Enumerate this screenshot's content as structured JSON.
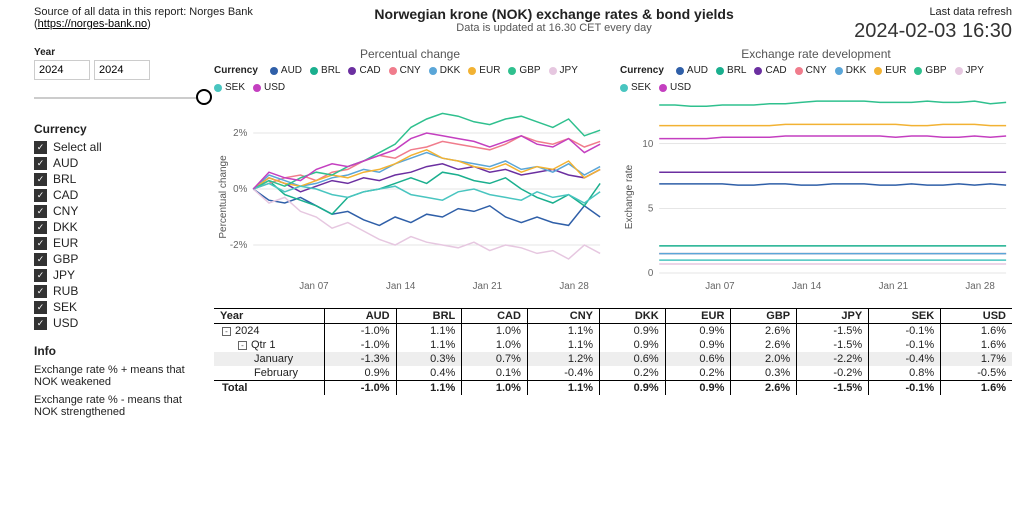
{
  "header": {
    "source_prefix": "Source of all data in this report: Norges Bank (",
    "source_link_text": "https://norges-bank.no",
    "source_suffix": ")",
    "title": "Norwegian krone (NOK) exchange rates & bond yields",
    "subtitle": "Data is updated at 16.30 CET every day",
    "refresh_label": "Last data refresh",
    "refresh_value": "2024-02-03 16:30"
  },
  "sidebar": {
    "year_label": "Year",
    "year_from": "2024",
    "year_to": "2024",
    "currency_header": "Currency",
    "select_all": "Select all",
    "currencies": [
      "AUD",
      "BRL",
      "CAD",
      "CNY",
      "DKK",
      "EUR",
      "GBP",
      "JPY",
      "RUB",
      "SEK",
      "USD"
    ],
    "info_header": "Info",
    "info_1": "Exchange rate % + means that NOK weakened",
    "info_2": "Exchange rate % - means that NOK strengthened"
  },
  "colors": {
    "AUD": "#2f5fa8",
    "BRL": "#1aaf8e",
    "CAD": "#6b2fa0",
    "CNY": "#f07c8c",
    "DKK": "#5aa6d8",
    "EUR": "#f2b233",
    "GBP": "#2fc08e",
    "JPY": "#e6c7e0",
    "SEK": "#49c5c0",
    "USD": "#c43fc0"
  },
  "chart1": {
    "title": "Percentual change",
    "legend_lead": "Currency",
    "y_label": "Percentual change",
    "y_ticks": [
      -2,
      0,
      2
    ],
    "ylim": [
      -3,
      3
    ],
    "x_ticks": [
      "Jan 07",
      "Jan 14",
      "Jan 21",
      "Jan 28"
    ],
    "series": {
      "AUD": [
        0,
        -0.4,
        -0.5,
        -0.3,
        -0.6,
        -0.9,
        -0.8,
        -1.1,
        -1.3,
        -1.0,
        -1.2,
        -0.9,
        -1.0,
        -0.7,
        -0.8,
        -0.6,
        -1.0,
        -1.2,
        -1.0,
        -1.2,
        -1.3,
        -0.6,
        -1.0
      ],
      "BRL": [
        0,
        0.3,
        -0.2,
        -0.4,
        -0.6,
        -0.9,
        -0.3,
        -0.1,
        0.0,
        0.2,
        0.4,
        0.2,
        0.6,
        0.5,
        0.3,
        0.2,
        0.4,
        0.0,
        -0.3,
        -0.5,
        -0.2,
        -0.6,
        0.2
      ],
      "CAD": [
        0,
        0.4,
        0.2,
        -0.1,
        0.1,
        0.3,
        0.2,
        0.4,
        0.3,
        0.5,
        0.6,
        0.8,
        0.9,
        0.7,
        0.8,
        0.6,
        0.7,
        0.5,
        0.6,
        0.7,
        0.5,
        0.4,
        0.7
      ],
      "CNY": [
        0,
        0.2,
        0.4,
        0.5,
        0.3,
        0.6,
        0.7,
        1.0,
        1.2,
        1.1,
        1.4,
        1.5,
        1.7,
        1.6,
        1.5,
        1.4,
        1.6,
        1.9,
        1.7,
        1.6,
        1.8,
        1.5,
        1.7
      ],
      "DKK": [
        0,
        0.5,
        0.3,
        0.1,
        0.2,
        0.4,
        0.5,
        0.7,
        0.6,
        0.9,
        1.1,
        1.3,
        1.1,
        1.0,
        0.9,
        0.8,
        1.0,
        0.7,
        0.8,
        0.6,
        0.9,
        0.5,
        0.8
      ],
      "EUR": [
        0,
        0.4,
        0.2,
        0.1,
        0.3,
        0.5,
        0.4,
        0.6,
        0.7,
        0.9,
        1.2,
        1.4,
        1.1,
        1.0,
        0.8,
        0.7,
        0.9,
        0.6,
        0.8,
        0.7,
        1.0,
        0.4,
        0.7
      ],
      "GBP": [
        0,
        0.3,
        0.1,
        0.4,
        0.6,
        0.5,
        0.8,
        1.0,
        1.3,
        1.6,
        2.2,
        2.5,
        2.7,
        2.6,
        2.4,
        2.3,
        2.5,
        2.6,
        2.4,
        2.2,
        2.5,
        1.9,
        2.1
      ],
      "JPY": [
        0,
        -0.5,
        -0.3,
        -0.8,
        -1.0,
        -1.4,
        -1.2,
        -1.5,
        -1.8,
        -2.0,
        -1.7,
        -1.9,
        -2.0,
        -2.1,
        -1.9,
        -2.2,
        -2.0,
        -2.1,
        -2.3,
        -2.2,
        -2.5,
        -2.0,
        -2.3
      ],
      "SEK": [
        0,
        0.2,
        -0.1,
        0.1,
        0.0,
        -0.2,
        -0.3,
        -0.1,
        0.0,
        0.1,
        -0.2,
        -0.3,
        -0.4,
        -0.1,
        0.0,
        -0.2,
        -0.3,
        -0.4,
        -0.1,
        -0.3,
        -0.2,
        -0.5,
        -0.1
      ],
      "USD": [
        0,
        0.6,
        0.4,
        0.3,
        0.7,
        0.9,
        0.8,
        1.0,
        1.2,
        1.4,
        1.8,
        2.0,
        1.9,
        1.8,
        1.7,
        1.5,
        1.7,
        1.9,
        1.6,
        1.5,
        1.8,
        1.3,
        1.6
      ]
    }
  },
  "chart2": {
    "title": "Exchange rate development",
    "legend_lead": "Currency",
    "y_label": "Exchange rate",
    "y_ticks": [
      0,
      5,
      10
    ],
    "ylim": [
      0,
      13
    ],
    "x_ticks": [
      "Jan 07",
      "Jan 14",
      "Jan 21",
      "Jan 28"
    ],
    "series": {
      "AUD": [
        6.9,
        6.9,
        6.9,
        6.9,
        6.9,
        6.8,
        6.8,
        6.9,
        6.9,
        6.8,
        6.8,
        6.9,
        6.9,
        6.9,
        6.8,
        6.8,
        6.9,
        6.8,
        6.8,
        6.9,
        6.8,
        6.9,
        6.8
      ],
      "BRL": [
        2.1,
        2.1,
        2.1,
        2.1,
        2.1,
        2.1,
        2.1,
        2.1,
        2.1,
        2.1,
        2.1,
        2.1,
        2.1,
        2.1,
        2.1,
        2.1,
        2.1,
        2.1,
        2.1,
        2.1,
        2.1,
        2.1,
        2.1
      ],
      "CAD": [
        7.8,
        7.8,
        7.8,
        7.8,
        7.8,
        7.8,
        7.8,
        7.8,
        7.8,
        7.8,
        7.8,
        7.8,
        7.8,
        7.8,
        7.8,
        7.8,
        7.8,
        7.8,
        7.8,
        7.8,
        7.8,
        7.8,
        7.8
      ],
      "CNY": [
        1.5,
        1.5,
        1.5,
        1.5,
        1.5,
        1.5,
        1.5,
        1.5,
        1.5,
        1.5,
        1.5,
        1.5,
        1.5,
        1.5,
        1.5,
        1.5,
        1.5,
        1.5,
        1.5,
        1.5,
        1.5,
        1.5,
        1.5
      ],
      "DKK": [
        1.5,
        1.5,
        1.5,
        1.5,
        1.5,
        1.5,
        1.5,
        1.5,
        1.5,
        1.5,
        1.5,
        1.5,
        1.5,
        1.5,
        1.5,
        1.5,
        1.5,
        1.5,
        1.5,
        1.5,
        1.5,
        1.5,
        1.5
      ],
      "EUR": [
        11.4,
        11.4,
        11.4,
        11.4,
        11.4,
        11.4,
        11.4,
        11.4,
        11.5,
        11.5,
        11.5,
        11.5,
        11.5,
        11.5,
        11.5,
        11.5,
        11.4,
        11.4,
        11.5,
        11.5,
        11.5,
        11.4,
        11.4
      ],
      "GBP": [
        13.0,
        13.0,
        12.9,
        12.9,
        13.0,
        13.0,
        13.0,
        13.1,
        13.1,
        13.2,
        13.3,
        13.3,
        13.3,
        13.3,
        13.2,
        13.2,
        13.2,
        13.3,
        13.2,
        13.2,
        13.3,
        13.1,
        13.2
      ],
      "JPY": [
        0.7,
        0.7,
        0.7,
        0.7,
        0.7,
        0.7,
        0.7,
        0.7,
        0.7,
        0.7,
        0.7,
        0.7,
        0.7,
        0.7,
        0.7,
        0.7,
        0.7,
        0.7,
        0.7,
        0.7,
        0.7,
        0.7,
        0.7
      ],
      "SEK": [
        1.0,
        1.0,
        1.0,
        1.0,
        1.0,
        1.0,
        1.0,
        1.0,
        1.0,
        1.0,
        1.0,
        1.0,
        1.0,
        1.0,
        1.0,
        1.0,
        1.0,
        1.0,
        1.0,
        1.0,
        1.0,
        1.0,
        1.0
      ],
      "USD": [
        10.4,
        10.4,
        10.4,
        10.4,
        10.5,
        10.5,
        10.5,
        10.5,
        10.6,
        10.6,
        10.6,
        10.6,
        10.6,
        10.6,
        10.6,
        10.5,
        10.6,
        10.6,
        10.5,
        10.5,
        10.6,
        10.5,
        10.6
      ]
    }
  },
  "table": {
    "row_header": "Year",
    "columns": [
      "AUD",
      "BRL",
      "CAD",
      "CNY",
      "DKK",
      "EUR",
      "GBP",
      "JPY",
      "SEK",
      "USD"
    ],
    "rows": [
      {
        "label": "2024",
        "indent": 0,
        "toggle": "-",
        "vals": [
          "-1.0%",
          "1.1%",
          "1.0%",
          "1.1%",
          "0.9%",
          "0.9%",
          "2.6%",
          "-1.5%",
          "-0.1%",
          "1.6%"
        ]
      },
      {
        "label": "Qtr 1",
        "indent": 1,
        "toggle": "-",
        "vals": [
          "-1.0%",
          "1.1%",
          "1.0%",
          "1.1%",
          "0.9%",
          "0.9%",
          "2.6%",
          "-1.5%",
          "-0.1%",
          "1.6%"
        ]
      },
      {
        "label": "January",
        "indent": 2,
        "hi": true,
        "vals": [
          "-1.3%",
          "0.3%",
          "0.7%",
          "1.2%",
          "0.6%",
          "0.6%",
          "2.0%",
          "-2.2%",
          "-0.4%",
          "1.7%"
        ]
      },
      {
        "label": "February",
        "indent": 2,
        "vals": [
          "0.9%",
          "0.4%",
          "0.1%",
          "-0.4%",
          "0.2%",
          "0.2%",
          "0.3%",
          "-0.2%",
          "0.8%",
          "-0.5%"
        ]
      }
    ],
    "total_label": "Total",
    "total_vals": [
      "-1.0%",
      "1.1%",
      "1.0%",
      "1.1%",
      "0.9%",
      "0.9%",
      "2.6%",
      "-1.5%",
      "-0.1%",
      "1.6%"
    ]
  }
}
